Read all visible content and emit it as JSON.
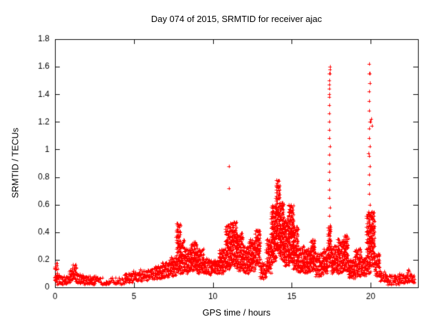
{
  "chart_data": {
    "type": "scatter",
    "title": "Day 074 of 2015, SRMTID for receiver ajac",
    "xlabel": "GPS time / hours",
    "ylabel": "SRMTID / TECUs",
    "xlim": [
      0,
      23
    ],
    "ylim": [
      0,
      1.8
    ],
    "xticks": [
      0,
      5,
      10,
      15,
      20
    ],
    "yticks": [
      0,
      0.2,
      0.4,
      0.6,
      0.8,
      1,
      1.2,
      1.4,
      1.6,
      1.8
    ],
    "marker": "plus",
    "marker_color": "#ff0000",
    "axis_color": "#000000",
    "grid": false,
    "legend": "none",
    "envelope": [
      [
        0.0,
        0.15,
        0.05,
        0.18
      ],
      [
        0.0,
        0.3,
        0.02,
        0.1
      ],
      [
        0.3,
        0.9,
        0.02,
        0.08
      ],
      [
        0.9,
        1.1,
        0.03,
        0.13
      ],
      [
        1.1,
        1.4,
        0.04,
        0.17
      ],
      [
        1.4,
        1.8,
        0.03,
        0.1
      ],
      [
        1.8,
        2.6,
        0.02,
        0.08
      ],
      [
        2.6,
        4.4,
        0.02,
        0.07
      ],
      [
        4.4,
        4.9,
        0.03,
        0.1
      ],
      [
        4.9,
        5.3,
        0.04,
        0.12
      ],
      [
        5.3,
        5.9,
        0.04,
        0.13
      ],
      [
        5.9,
        6.3,
        0.05,
        0.15
      ],
      [
        6.3,
        6.8,
        0.06,
        0.16
      ],
      [
        6.8,
        7.3,
        0.07,
        0.18
      ],
      [
        7.3,
        7.7,
        0.08,
        0.22
      ],
      [
        7.7,
        7.95,
        0.1,
        0.47
      ],
      [
        7.95,
        8.2,
        0.1,
        0.35
      ],
      [
        8.2,
        8.6,
        0.1,
        0.28
      ],
      [
        8.6,
        9.0,
        0.12,
        0.33
      ],
      [
        9.0,
        9.4,
        0.1,
        0.28
      ],
      [
        9.4,
        9.9,
        0.09,
        0.22
      ],
      [
        9.9,
        10.4,
        0.1,
        0.2
      ],
      [
        10.4,
        10.8,
        0.1,
        0.28
      ],
      [
        10.8,
        11.1,
        0.12,
        0.45
      ],
      [
        11.1,
        11.5,
        0.15,
        0.48
      ],
      [
        11.5,
        11.9,
        0.12,
        0.4
      ],
      [
        11.9,
        12.3,
        0.1,
        0.3
      ],
      [
        12.3,
        12.7,
        0.12,
        0.35
      ],
      [
        12.7,
        13.0,
        0.15,
        0.42
      ],
      [
        13.0,
        13.4,
        0.06,
        0.18
      ],
      [
        13.4,
        13.7,
        0.1,
        0.35
      ],
      [
        13.7,
        14.0,
        0.18,
        0.6
      ],
      [
        14.0,
        14.25,
        0.25,
        0.78
      ],
      [
        14.25,
        14.5,
        0.2,
        0.62
      ],
      [
        14.5,
        14.8,
        0.15,
        0.5
      ],
      [
        14.8,
        15.1,
        0.18,
        0.6
      ],
      [
        15.1,
        15.4,
        0.12,
        0.45
      ],
      [
        15.4,
        15.8,
        0.1,
        0.3
      ],
      [
        15.8,
        16.2,
        0.1,
        0.28
      ],
      [
        16.2,
        16.5,
        0.12,
        0.35
      ],
      [
        16.5,
        17.0,
        0.08,
        0.25
      ],
      [
        17.0,
        17.3,
        0.1,
        0.28
      ],
      [
        17.3,
        17.5,
        0.15,
        0.45
      ],
      [
        17.5,
        17.9,
        0.1,
        0.3
      ],
      [
        17.9,
        18.3,
        0.1,
        0.35
      ],
      [
        18.3,
        18.6,
        0.12,
        0.38
      ],
      [
        18.6,
        19.0,
        0.06,
        0.2
      ],
      [
        19.0,
        19.4,
        0.08,
        0.28
      ],
      [
        19.4,
        19.75,
        0.08,
        0.22
      ],
      [
        19.75,
        20.0,
        0.1,
        0.55
      ],
      [
        20.0,
        20.25,
        0.15,
        0.55
      ],
      [
        20.25,
        20.6,
        0.08,
        0.25
      ],
      [
        20.6,
        21.0,
        0.04,
        0.12
      ],
      [
        21.0,
        21.8,
        0.02,
        0.09
      ],
      [
        21.8,
        22.3,
        0.03,
        0.1
      ],
      [
        22.3,
        22.6,
        0.04,
        0.13
      ],
      [
        22.6,
        22.8,
        0.03,
        0.09
      ]
    ],
    "spike_columns": [
      {
        "x": 17.4,
        "y": [
          0.38,
          0.45,
          0.52,
          0.58,
          0.65,
          0.71,
          0.78,
          0.84,
          0.9,
          0.96,
          1.02,
          1.08,
          1.14,
          1.2,
          1.26,
          1.32,
          1.38,
          1.44,
          1.5,
          1.55,
          1.6
        ]
      },
      {
        "x": 19.92,
        "y": [
          0.45,
          0.52,
          0.6,
          0.68,
          0.75,
          0.82,
          0.88,
          0.95,
          1.02,
          1.08,
          1.15,
          1.2,
          1.28,
          1.35,
          1.42,
          1.48,
          1.55,
          1.62
        ]
      }
    ],
    "outlier_points": [
      [
        11.02,
        0.88
      ],
      [
        11.0,
        0.72
      ],
      [
        17.36,
        1.4
      ],
      [
        17.36,
        1.47
      ],
      [
        17.36,
        1.55
      ],
      [
        17.44,
        1.58
      ],
      [
        19.97,
        1.48
      ],
      [
        19.97,
        1.55
      ],
      [
        20.0,
        1.2
      ],
      [
        20.04,
        1.22
      ],
      [
        20.07,
        1.17
      ],
      [
        19.85,
        0.97
      ]
    ]
  }
}
